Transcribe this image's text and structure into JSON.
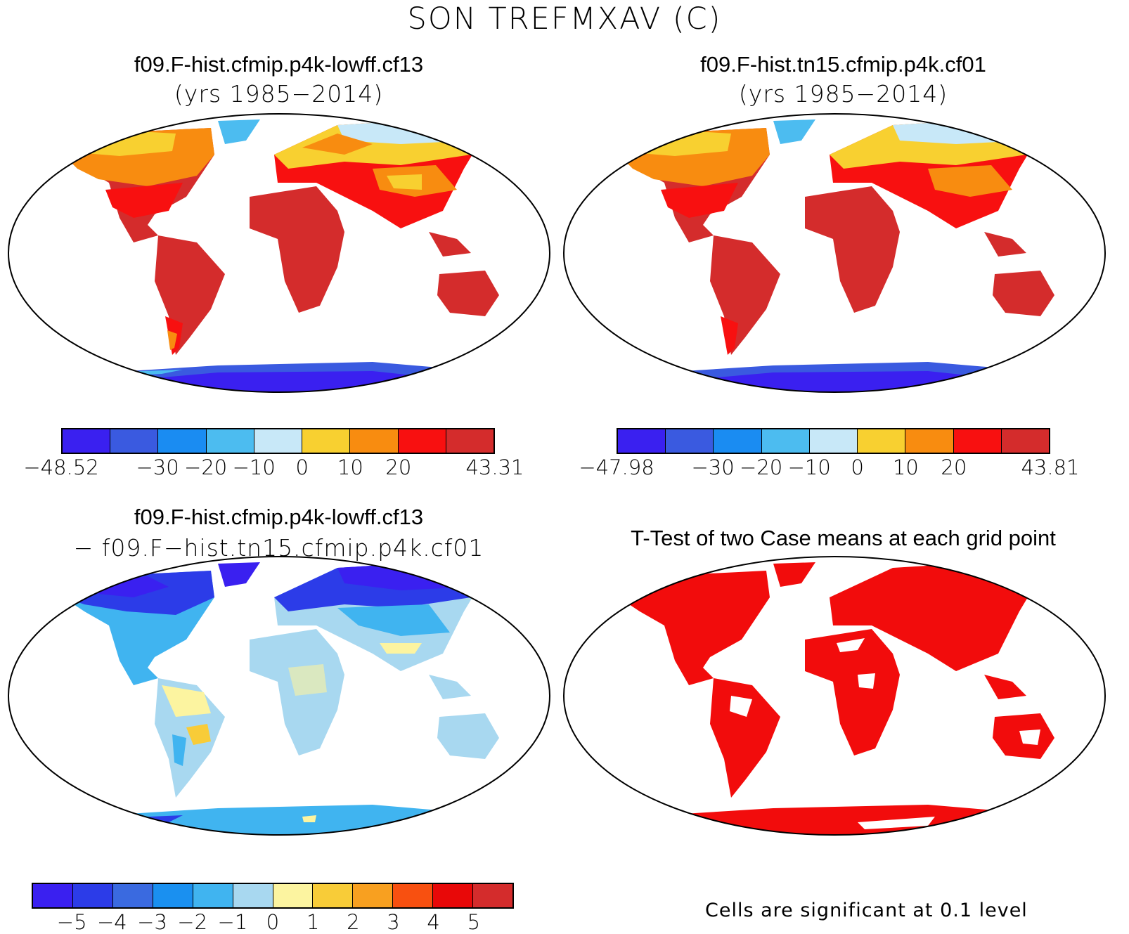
{
  "figure": {
    "title": "SON TREFMXAV (C)"
  },
  "panels": [
    {
      "title": "f09.F-hist.cfmip.p4k-lowff.cf13",
      "subtitle": "(yrs 1985−2014)",
      "colorbar": {
        "colors": [
          "#3a20f0",
          "#3a5ae0",
          "#1a8cf2",
          "#4cbcf0",
          "#c8e8f8",
          "#f8d030",
          "#f88c10",
          "#f81010",
          "#d42c2c"
        ],
        "tick_labels": [
          "−48.52",
          "−30",
          "−20",
          "−10",
          "0",
          "10",
          "20",
          "43.31"
        ]
      }
    },
    {
      "title": "f09.F-hist.tn15.cfmip.p4k.cf01",
      "subtitle": "(yrs 1985−2014)",
      "colorbar": {
        "colors": [
          "#3a20f0",
          "#3a5ae0",
          "#1a8cf2",
          "#4cbcf0",
          "#c8e8f8",
          "#f8d030",
          "#f88c10",
          "#f81010",
          "#d42c2c"
        ],
        "tick_labels": [
          "−47.98",
          "−30",
          "−20",
          "−10",
          "0",
          "10",
          "20",
          "43.81"
        ]
      }
    },
    {
      "title": "f09.F-hist.cfmip.p4k-lowff.cf13",
      "subtitle": "− f09.F−hist.tn15.cfmip.p4k.cf01",
      "colorbar": {
        "colors": [
          "#3a20f0",
          "#2c3ce8",
          "#3a6ae0",
          "#1a90f0",
          "#40b4f0",
          "#a8d8f0",
          "#fcf4a0",
          "#f8cc38",
          "#f8a020",
          "#f85010",
          "#e80808",
          "#d42c2c"
        ],
        "tick_labels": [
          "−5",
          "−4",
          "−3",
          "−2",
          "−1",
          "0",
          "1",
          "2",
          "3",
          "4",
          "5"
        ]
      }
    },
    {
      "title": "T-Test of two Case means at each grid point",
      "note": "Cells are significant at 0.1 level",
      "colors": {
        "significant": "#f20c0c"
      }
    }
  ]
}
